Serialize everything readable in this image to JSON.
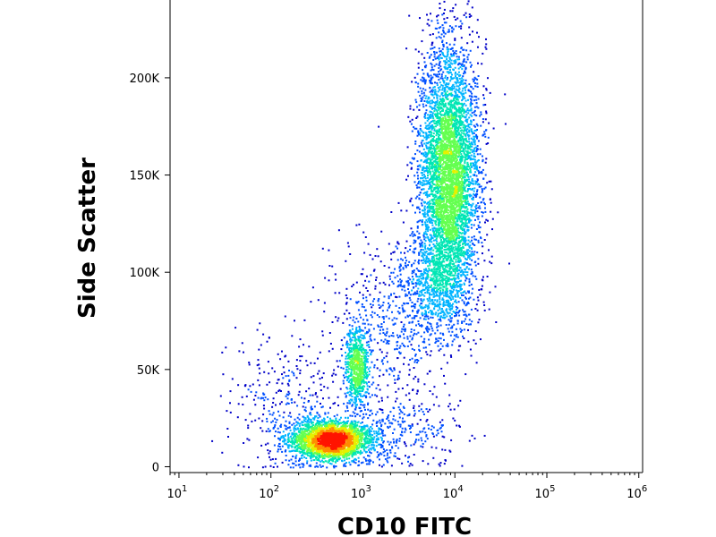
{
  "chart_data": {
    "type": "scatter",
    "title": "",
    "xlabel": "CD10 FITC",
    "ylabel": "Side Scatter",
    "x_scale": "log",
    "xlim": [
      8,
      1100000
    ],
    "ylim": [
      -3000,
      240000
    ],
    "grid": false,
    "legend": "none",
    "x_ticks": [
      {
        "base": "10",
        "exp": "1",
        "value": 10
      },
      {
        "base": "10",
        "exp": "2",
        "value": 100
      },
      {
        "base": "10",
        "exp": "3",
        "value": 1000
      },
      {
        "base": "10",
        "exp": "4",
        "value": 10000
      },
      {
        "base": "10",
        "exp": "5",
        "value": 100000
      },
      {
        "base": "10",
        "exp": "6",
        "value": 1000000
      }
    ],
    "y_ticks": [
      {
        "label": "0",
        "value": 0
      },
      {
        "label": "50K",
        "value": 50000
      },
      {
        "label": "100K",
        "value": 100000
      },
      {
        "label": "150K",
        "value": 150000
      },
      {
        "label": "200K",
        "value": 200000
      }
    ],
    "density_colormap": [
      "#0000c8",
      "#0050ff",
      "#00b4ff",
      "#00e6b4",
      "#64ff50",
      "#e6f000",
      "#ff8c00",
      "#ff1400"
    ],
    "populations": [
      {
        "x_center": 450,
        "x_log_sigma": 0.22,
        "y_center": 14000,
        "y_sigma": 5000,
        "count": 2600
      },
      {
        "x_center": 850,
        "x_log_sigma": 0.06,
        "y_center": 52000,
        "y_sigma": 10000,
        "count": 700
      },
      {
        "x_center": 8500,
        "x_log_sigma": 0.16,
        "y_center": 150000,
        "y_sigma": 33000,
        "count": 5000
      },
      {
        "x_center": 5500,
        "x_log_sigma": 0.22,
        "y_center": 92000,
        "y_sigma": 16000,
        "count": 700
      },
      {
        "x_center": 1500,
        "x_log_sigma": 0.3,
        "y_center": 70000,
        "y_sigma": 22000,
        "count": 400
      },
      {
        "x_center": 180,
        "x_log_sigma": 0.35,
        "y_center": 30000,
        "y_sigma": 20000,
        "count": 400
      },
      {
        "x_center": 3000,
        "x_log_sigma": 0.3,
        "y_center": 20000,
        "y_sigma": 10000,
        "count": 250
      }
    ]
  }
}
